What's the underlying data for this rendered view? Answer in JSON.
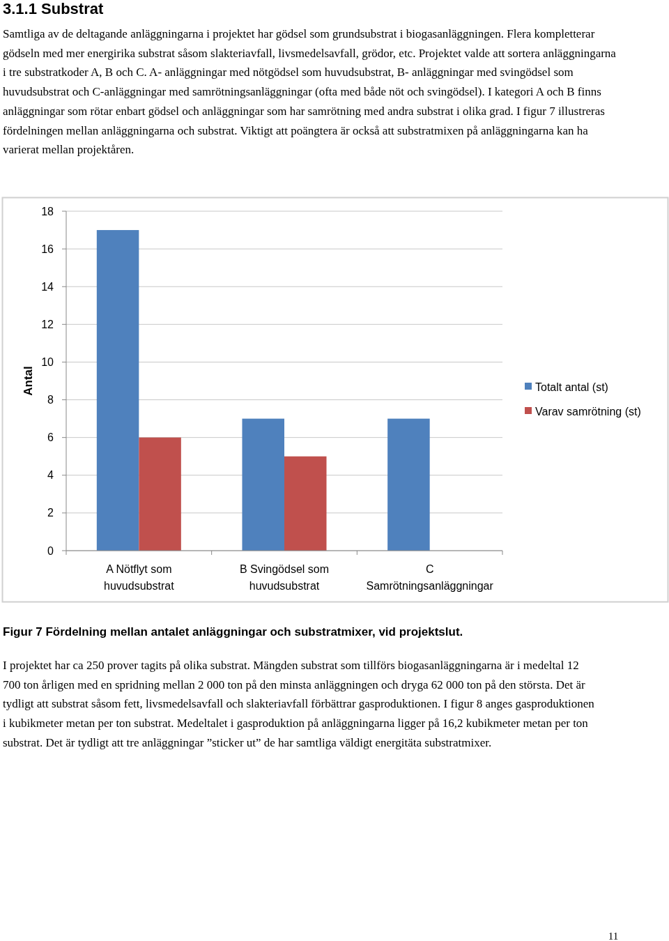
{
  "chart_data": {
    "type": "bar",
    "title": "3.1.1 Substrat",
    "subtitle": "Samtliga av de deltagande anläggningarna i projektet har gödsel som grundsubstrat i biogasanläggningen. Flera kompletterar gödseln med mer energirika substrat såsom slakteriavfall, livsmedelsavfall, grödor, etc. Projektet valde att sortera anläggningarna i tre substratkoder A, B och C. A- anläggningar med nötgödsel som huvudsubstrat, B- anläggningar med svingödsel som huvudsubstrat och C-anläggningar med samrötningsanläggningar (ofta med både nöt och svingödsel). I kategori A och B finns anläggningar som rötar enbart gödsel och anläggningar som har samrötning med andra substrat i olika grad. I figur 7 illustreras fördelningen mellan anläggningarna och substrat. Viktigt att poängtera är också att substratmixen på anläggningarna kan ha varierat mellan projektåren.",
    "ylabel": "Antal",
    "categories": [
      "A Nötflyt som huvudsubstrat",
      "B Svingödsel som huvudsubstrat",
      "C Samrötningsanläggningar"
    ],
    "series": [
      {
        "name": "Totalt antal (st)",
        "color": "#4f81bd",
        "values": [
          17,
          7,
          7
        ]
      },
      {
        "name": "Varav samrötning (st)",
        "color": "#c0504d",
        "values": [
          6,
          5,
          0
        ]
      }
    ],
    "ylim": [
      0,
      18
    ],
    "yticks": [
      0,
      2,
      4,
      6,
      8,
      10,
      12,
      14,
      16,
      18
    ],
    "grid": "y",
    "legend": "right",
    "annotations": [
      "Figur 7 Fördelning mellan antalet anläggningar och substratmixer, vid projektslut.",
      "I projektet har ca 250 prover tagits på olika substrat. Mängden substrat som tillförs biogasanläggningarna är i medeltal 12 700 ton årligen med en spridning mellan 2 000 ton på den minsta anläggningen och dryga 62 000 ton på den största. Det är tydligt att substrat såsom fett, livsmedelsavfall och slakteriavfall förbättrar gasproduktionen. I figur 8 anges gasproduktionen i kubikmeter metan per ton substrat.  Medeltalet i gasproduktion på anläggningarna ligger på 16,2 kubikmeter metan per ton substrat. Det är tydligt att tre anläggningar ”sticker ut” de har samtliga väldigt energitäta substratmixer.",
      "11"
    ]
  }
}
